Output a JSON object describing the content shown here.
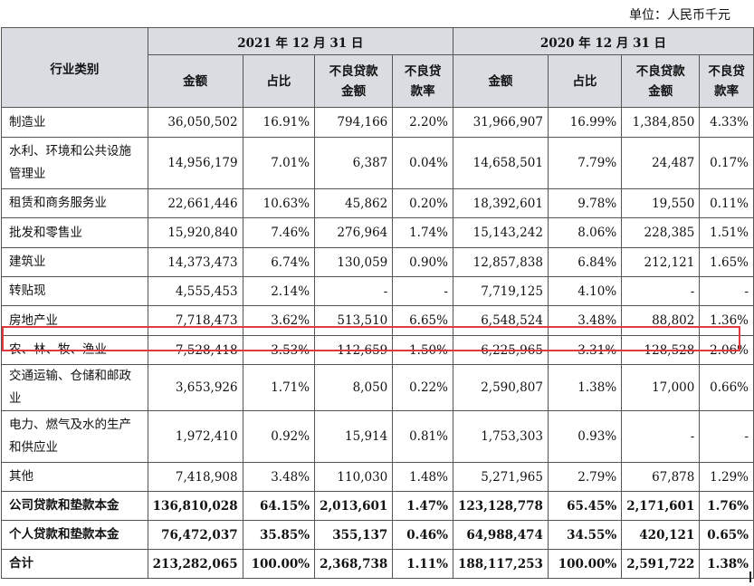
{
  "unit_label": "单位：人民币千元",
  "header": {
    "category": "行业类别",
    "year_2021": "2021 年 12 月 31 日",
    "year_2020": "2020 年 12 月 31 日",
    "amount": "金额",
    "share": "占比",
    "npl_amount_1": "不良贷款",
    "npl_amount_2": "金额",
    "npl_rate_1": "不良贷",
    "npl_rate_2": "款率"
  },
  "rows": [
    {
      "cat": "制造业",
      "a21": "36,050,502",
      "s21": "16.91%",
      "n21": "794,166",
      "r21": "2.20%",
      "a20": "31,966,907",
      "s20": "16.99%",
      "n20": "1,384,850",
      "r20": "4.33%"
    },
    {
      "cat": "水利、环境和公共设施管理业",
      "a21": "14,956,179",
      "s21": "7.01%",
      "n21": "6,387",
      "r21": "0.04%",
      "a20": "14,658,501",
      "s20": "7.79%",
      "n20": "24,487",
      "r20": "0.17%"
    },
    {
      "cat": "租赁和商务服务业",
      "a21": "22,661,446",
      "s21": "10.63%",
      "n21": "45,862",
      "r21": "0.20%",
      "a20": "18,392,601",
      "s20": "9.78%",
      "n20": "19,550",
      "r20": "0.11%"
    },
    {
      "cat": "批发和零售业",
      "a21": "15,920,840",
      "s21": "7.46%",
      "n21": "276,964",
      "r21": "1.74%",
      "a20": "15,143,242",
      "s20": "8.06%",
      "n20": "228,385",
      "r20": "1.51%"
    },
    {
      "cat": "建筑业",
      "a21": "14,373,473",
      "s21": "6.74%",
      "n21": "130,059",
      "r21": "0.90%",
      "a20": "12,857,838",
      "s20": "6.84%",
      "n20": "212,121",
      "r20": "1.65%"
    },
    {
      "cat": "转贴现",
      "a21": "4,555,453",
      "s21": "2.14%",
      "n21": "-",
      "r21": "-",
      "a20": "7,719,125",
      "s20": "4.10%",
      "n20": "-",
      "r20": "-"
    },
    {
      "cat": "房地产业",
      "a21": "7,718,473",
      "s21": "3.62%",
      "n21": "513,510",
      "r21": "6.65%",
      "a20": "6,548,524",
      "s20": "3.48%",
      "n20": "88,802",
      "r20": "1.36%"
    },
    {
      "cat": "农、林、牧、渔业",
      "a21": "7,528,418",
      "s21": "3.53%",
      "n21": "112,659",
      "r21": "1.50%",
      "a20": "6,225,965",
      "s20": "3.31%",
      "n20": "128,528",
      "r20": "2.06%"
    },
    {
      "cat": "交通运输、仓储和邮政业",
      "a21": "3,653,926",
      "s21": "1.71%",
      "n21": "8,050",
      "r21": "0.22%",
      "a20": "2,590,807",
      "s20": "1.38%",
      "n20": "17,000",
      "r20": "0.66%"
    },
    {
      "cat": "电力、燃气及水的生产和供应业",
      "a21": "1,972,410",
      "s21": "0.92%",
      "n21": "15,914",
      "r21": "0.81%",
      "a20": "1,753,303",
      "s20": "0.93%",
      "n20": "-",
      "r20": "-"
    },
    {
      "cat": "其他",
      "a21": "7,418,908",
      "s21": "3.48%",
      "n21": "110,030",
      "r21": "1.48%",
      "a20": "5,271,965",
      "s20": "2.79%",
      "n20": "67,878",
      "r20": "1.29%"
    },
    {
      "cat": "公司贷款和垫款本金",
      "a21": "136,810,028",
      "s21": "64.15%",
      "n21": "2,013,601",
      "r21": "1.47%",
      "a20": "123,128,778",
      "s20": "65.45%",
      "n20": "2,171,601",
      "r20": "1.76%"
    },
    {
      "cat": "个人贷款和垫款本金",
      "a21": "76,472,037",
      "s21": "35.85%",
      "n21": "355,137",
      "r21": "0.46%",
      "a20": "64,988,474",
      "s20": "34.55%",
      "n20": "420,121",
      "r20": "0.65%"
    },
    {
      "cat": "合计",
      "a21": "213,282,065",
      "s21": "100.00%",
      "n21": "2,368,738",
      "r21": "1.11%",
      "a20": "188,117,253",
      "s20": "100.00%",
      "n20": "2,591,722",
      "r20": "1.38%"
    }
  ],
  "highlight_color": "#e0393e"
}
